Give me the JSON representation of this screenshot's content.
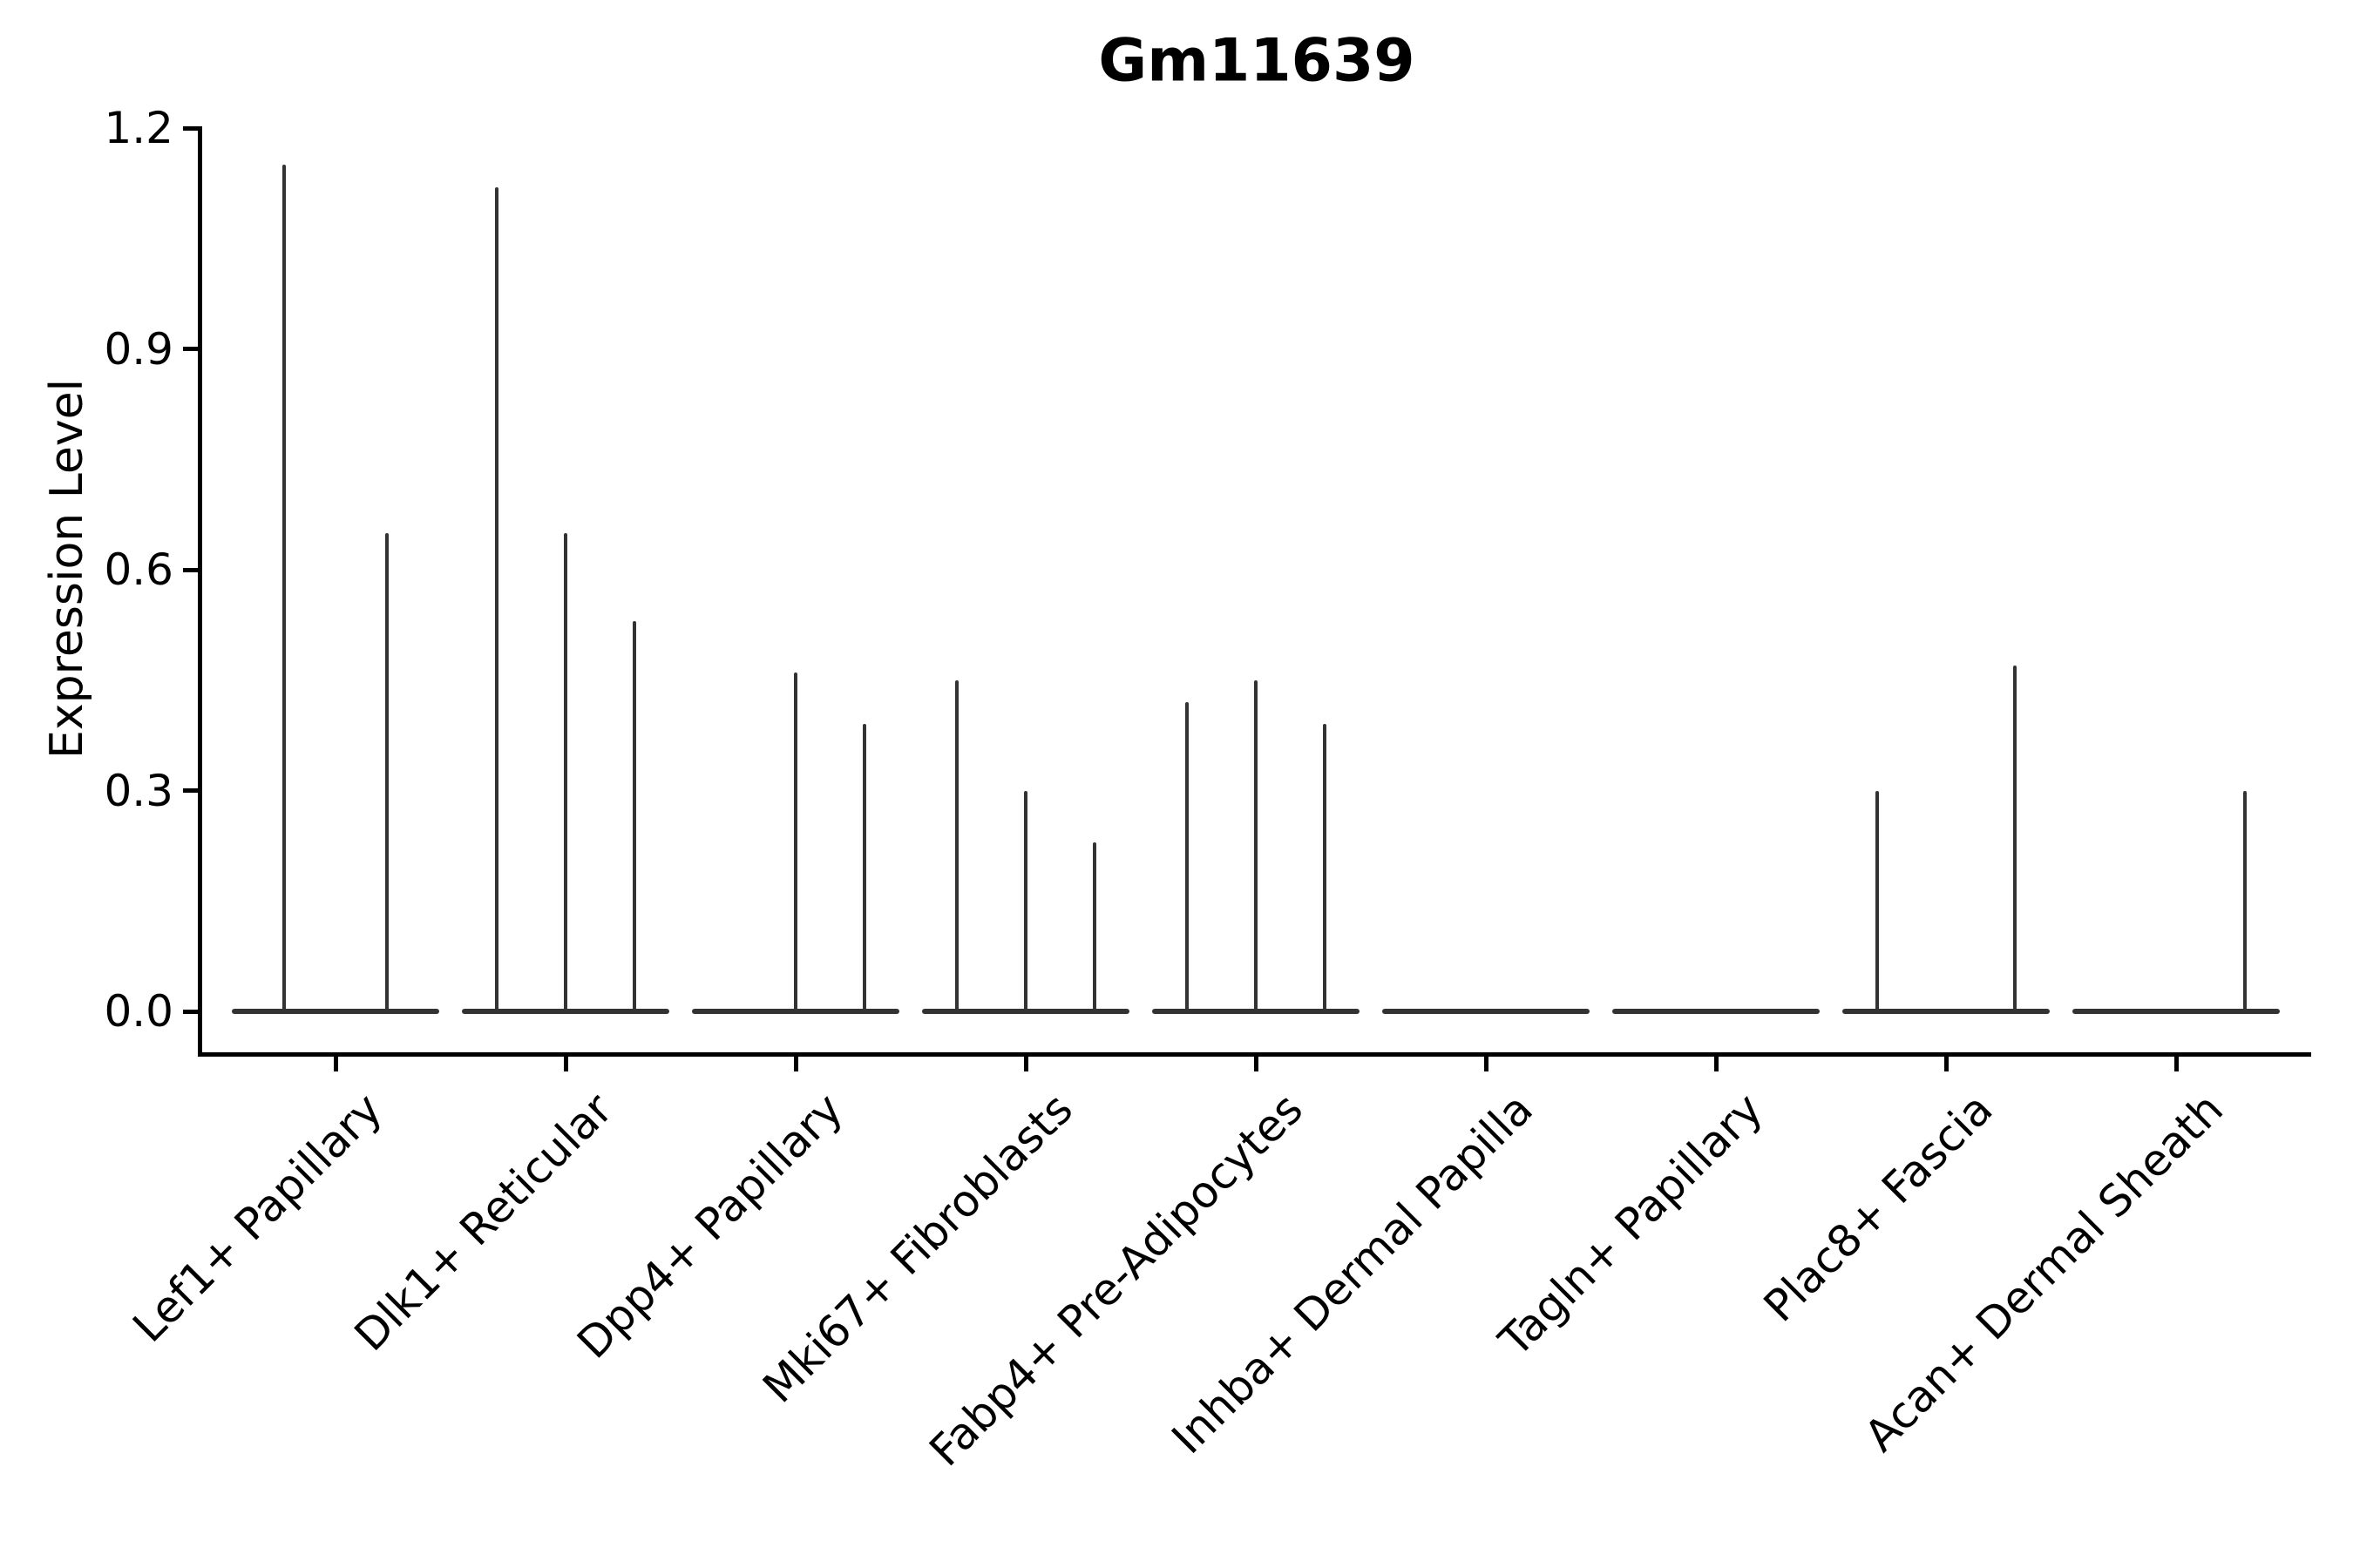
{
  "title": "Gm11639",
  "y_axis": {
    "label": "Expression Level",
    "ticks": [
      "0.0",
      "0.3",
      "0.6",
      "0.9",
      "1.2"
    ],
    "tick_values": [
      0.0,
      0.3,
      0.6,
      0.9,
      1.2
    ]
  },
  "colors": {
    "ink": "#000000",
    "violin": "#333333",
    "background": "#ffffff"
  },
  "chart_data": {
    "type": "violin",
    "title": "Gm11639",
    "xlabel": "",
    "ylabel": "Expression Level",
    "ylim": [
      0,
      1.2
    ],
    "yticks": [
      0.0,
      0.3,
      0.6,
      0.9,
      1.2
    ],
    "grid": false,
    "legend": "none",
    "categories": [
      "Lef1+ Papillary",
      "Dlk1+ Reticular",
      "Dpp4+ Papillary",
      "Mki67+ Fibroblasts",
      "Fabp4+ Pre-Adipocytes",
      "Inhba+ Dermal Papilla",
      "Tagln+ Papillary",
      "Plac8+ Fascia",
      "Acan+ Dermal Sheath"
    ],
    "series": [
      {
        "category": "Lef1+ Papillary",
        "baseline": 0,
        "violins": [
          {
            "offset": -0.225,
            "peak": 1.15
          },
          {
            "offset": 0.225,
            "peak": 0.65
          }
        ]
      },
      {
        "category": "Dlk1+ Reticular",
        "baseline": 0,
        "violins": [
          {
            "offset": -0.3,
            "peak": 1.12
          },
          {
            "offset": 0,
            "peak": 0.65
          },
          {
            "offset": 0.3,
            "peak": 0.53
          }
        ]
      },
      {
        "category": "Dpp4+ Papillary",
        "baseline": 0,
        "violins": [
          {
            "offset": 0,
            "peak": 0.46
          },
          {
            "offset": 0.3,
            "peak": 0.39
          }
        ]
      },
      {
        "category": "Mki67+ Fibroblasts",
        "baseline": 0,
        "violins": [
          {
            "offset": -0.3,
            "peak": 0.45
          },
          {
            "offset": 0,
            "peak": 0.3
          },
          {
            "offset": 0.3,
            "peak": 0.23
          }
        ]
      },
      {
        "category": "Fabp4+ Pre-Adipocytes",
        "baseline": 0,
        "violins": [
          {
            "offset": -0.3,
            "peak": 0.42
          },
          {
            "offset": 0,
            "peak": 0.45
          },
          {
            "offset": 0.3,
            "peak": 0.39
          }
        ]
      },
      {
        "category": "Inhba+ Dermal Papilla",
        "baseline": 0,
        "violins": []
      },
      {
        "category": "Tagln+ Papillary",
        "baseline": 0,
        "violins": []
      },
      {
        "category": "Plac8+ Fascia",
        "baseline": 0,
        "violins": [
          {
            "offset": -0.3,
            "peak": 0.3
          },
          {
            "offset": 0.3,
            "peak": 0.47
          }
        ]
      },
      {
        "category": "Acan+ Dermal Sheath",
        "baseline": 0,
        "violins": [
          {
            "offset": 0.3,
            "peak": 0.3
          }
        ]
      }
    ]
  }
}
